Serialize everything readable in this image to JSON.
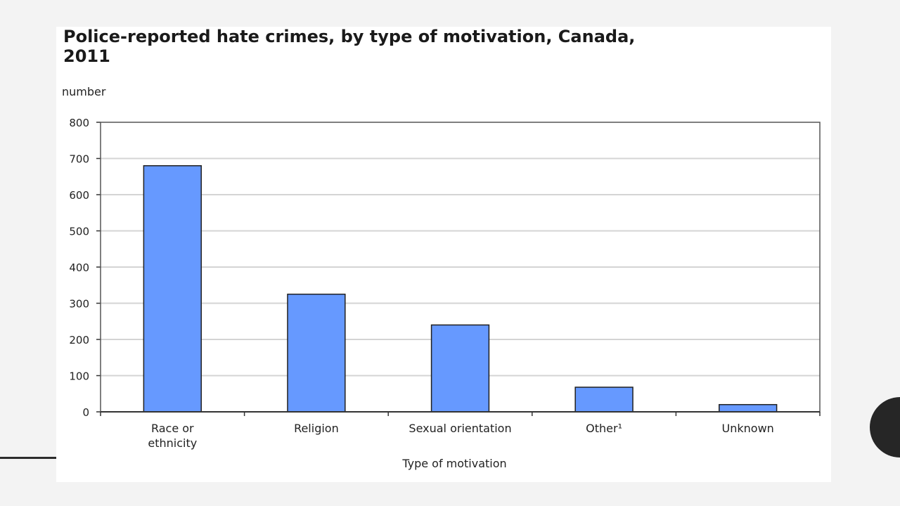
{
  "slide": {
    "accent_color": "#262626",
    "background": "#f3f3f3"
  },
  "chart_data": {
    "type": "bar",
    "title": "Police-reported hate crimes, by type of motivation, Canada, 2011",
    "ylabel": "number",
    "xlabel": "Type of motivation",
    "categories": [
      [
        "Race or",
        "ethnicity"
      ],
      [
        "Religion"
      ],
      [
        "Sexual orientation"
      ],
      [
        "Other¹"
      ],
      [
        "Unknown"
      ]
    ],
    "values": [
      680,
      325,
      240,
      68,
      20
    ],
    "ylim": [
      0,
      800
    ],
    "yticks": [
      0,
      100,
      200,
      300,
      400,
      500,
      600,
      700,
      800
    ],
    "grid": true,
    "bar_color": "#6699ff"
  }
}
